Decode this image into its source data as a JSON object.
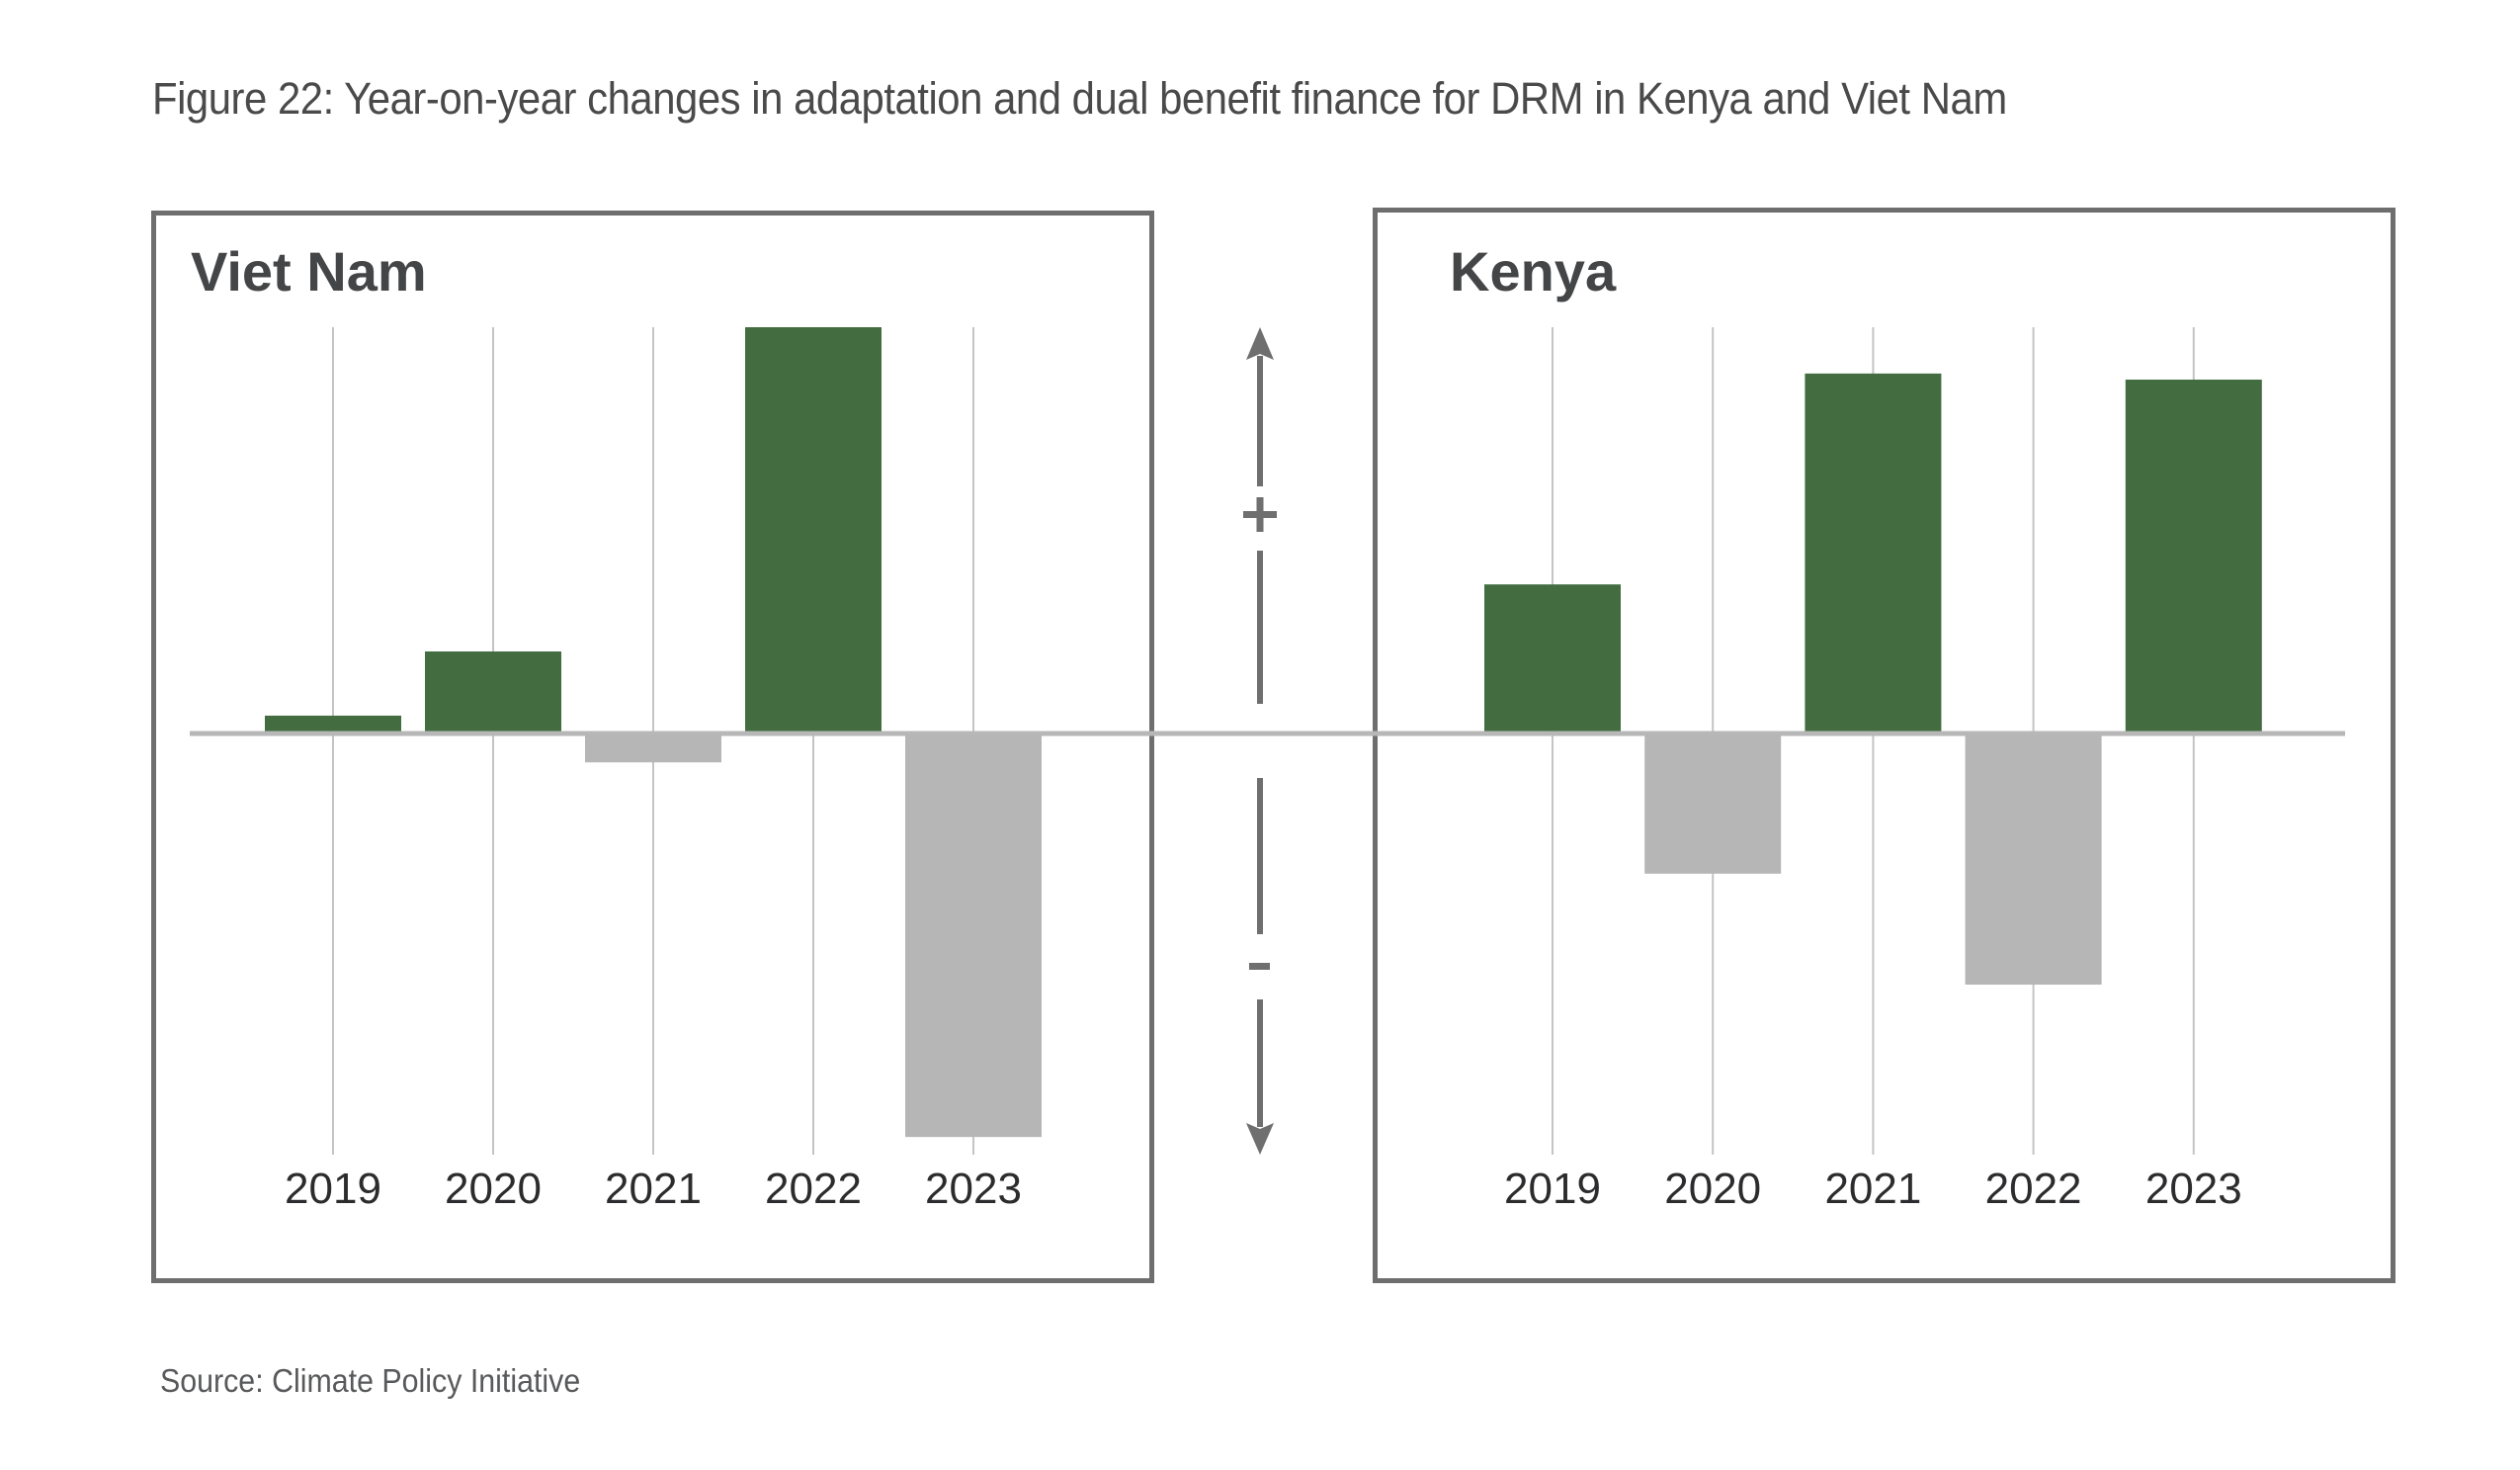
{
  "figure": {
    "title": "Figure 22: Year-on-year changes in adaptation and dual benefit finance for DRM in Kenya and Viet Nam",
    "source": "Source: Climate Policy Initiative",
    "direction_indicator": {
      "positive_label": "+",
      "negative_label": "-"
    }
  },
  "colors": {
    "increase": "#436d41",
    "decrease": "#b7b6b7",
    "frame": "#6e6e6e",
    "zero_line": "#b7b7b7",
    "gridline": "#c4c4c4"
  },
  "chart_data": [
    {
      "type": "bar",
      "title": "Viet Nam",
      "categories": [
        "2019",
        "2020",
        "2021",
        "2022",
        "2023"
      ],
      "values": [
        4.4,
        20.2,
        -7.1,
        100,
        -99.3
      ],
      "value_note": "relative year-on-year change (no numeric axis shown; scaled so largest change = 100)",
      "xlabel": "",
      "ylabel": "",
      "ylim": [
        -100,
        100
      ],
      "grid": "vertical gridlines at each category",
      "legend": "none"
    },
    {
      "type": "bar",
      "title": "Kenya",
      "categories": [
        "2019",
        "2020",
        "2021",
        "2022",
        "2023"
      ],
      "values": [
        36.7,
        -34.5,
        88.6,
        -61.8,
        87.1
      ],
      "value_note": "relative year-on-year change (no numeric axis shown; same scale as Viet Nam panel)",
      "xlabel": "",
      "ylabel": "",
      "ylim": [
        -100,
        100
      ],
      "grid": "vertical gridlines at each category",
      "legend": "none"
    }
  ]
}
